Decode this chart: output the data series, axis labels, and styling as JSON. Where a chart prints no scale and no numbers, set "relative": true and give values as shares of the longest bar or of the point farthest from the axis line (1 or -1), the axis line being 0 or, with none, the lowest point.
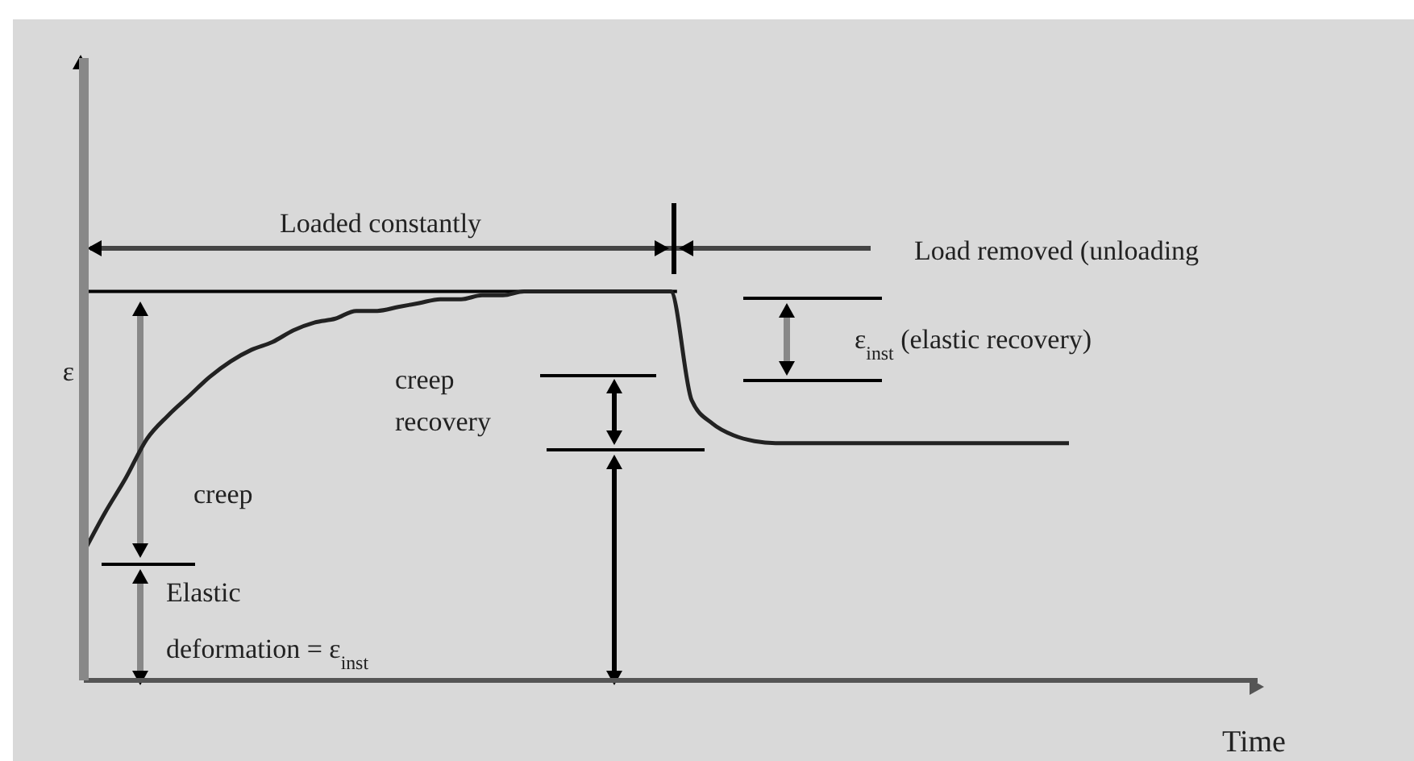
{
  "chart_data": {
    "type": "line",
    "xlabel": "Time",
    "ylabel": "ε",
    "relative": true,
    "categories": [
      null,
      null,
      null,
      null,
      null,
      null,
      null,
      null,
      null,
      null,
      null,
      null,
      null,
      null,
      null,
      null,
      null,
      null,
      null,
      null,
      null,
      null,
      null,
      null,
      null,
      null,
      null,
      null,
      null,
      null,
      null,
      null,
      null,
      null,
      null,
      null,
      null,
      null,
      null,
      null,
      null,
      null,
      null,
      null,
      null,
      null,
      null,
      null,
      null,
      null,
      null,
      null,
      null,
      null,
      null,
      null,
      null
    ],
    "series": [
      {
        "color": "#222222",
        "values": [
          0.33,
          0.43,
          0.52,
          0.62,
          0.68,
          0.73,
          0.78,
          0.82,
          0.85,
          0.87,
          0.9,
          0.92,
          0.93,
          0.95,
          0.95,
          0.96,
          0.97,
          0.98,
          0.98,
          0.99,
          0.99,
          1.0,
          1.0,
          1.0,
          1.0,
          1.0,
          1.0,
          1.0,
          1.0,
          0.72,
          0.66,
          0.63,
          0.615,
          0.61,
          0.61,
          0.61,
          0.61,
          0.61,
          0.61,
          0.61,
          0.61,
          0.61,
          0.61,
          0.61,
          0.61,
          0.61,
          0.61,
          0.61,
          null,
          null,
          null,
          null,
          null,
          null,
          null,
          null,
          null
        ]
      }
    ],
    "annotations": [
      "Loaded constantly",
      "Load removed (unloading",
      "ε$_{inst}$ (elastic recovery)",
      "creep recovery",
      "creep",
      "Elastic deformation = ε$_{inst}$"
    ],
    "ref_lines": [
      {
        "axis": "y",
        "value": 1,
        "color": "#000000"
      }
    ],
    "grid": false,
    "legend": false,
    "marker": "none",
    "line_style": "solid"
  }
}
